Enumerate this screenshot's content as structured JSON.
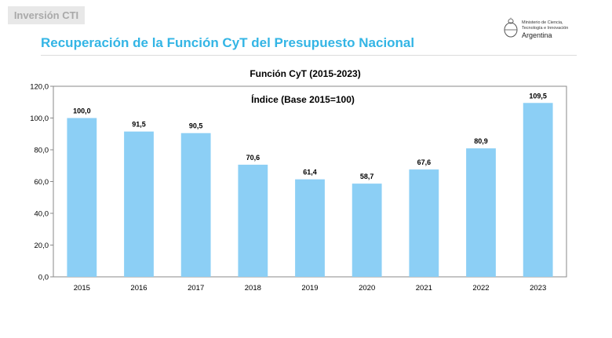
{
  "header": {
    "tag_label": "Inversión CTI",
    "title": "Recuperación de la Función CyT del Presupuesto Nacional",
    "logo": {
      "line1": "Ministerio de Ciencia,",
      "line2": "Tecnología e Innovación",
      "country": "Argentina"
    }
  },
  "colors": {
    "accent": "#33b5e5",
    "bar": "#8ccff5",
    "tag_bg": "#e8e8e8",
    "tag_text": "#a9a9a9"
  },
  "chart_data": {
    "type": "bar",
    "title": "Función CyT (2015-2023)",
    "subtitle": "Índice (Base 2015=100)",
    "categories": [
      "2015",
      "2016",
      "2017",
      "2018",
      "2019",
      "2020",
      "2021",
      "2022",
      "2023"
    ],
    "values": [
      100.0,
      91.5,
      90.5,
      70.6,
      61.4,
      58.7,
      67.6,
      80.9,
      109.5
    ],
    "value_labels": [
      "100,0",
      "91,5",
      "90,5",
      "70,6",
      "61,4",
      "58,7",
      "67,6",
      "80,9",
      "109,5"
    ],
    "yticks": [
      "0,0",
      "20,0",
      "40,0",
      "60,0",
      "80,0",
      "100,0",
      "120,0"
    ],
    "ylim": [
      0,
      120
    ],
    "grid": false,
    "legend": "none"
  }
}
